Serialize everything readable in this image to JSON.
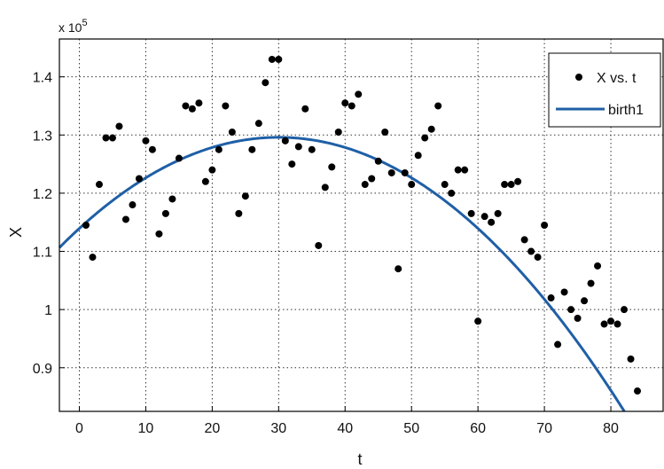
{
  "chart_data": {
    "type": "scatter",
    "xlabel": "t",
    "ylabel": "X",
    "xlim": [
      -3,
      88
    ],
    "ylim": [
      0.825,
      1.465
    ],
    "y_multiplier_label": "x 10",
    "y_multiplier_exponent": "5",
    "x_ticks": [
      0,
      10,
      20,
      30,
      40,
      50,
      60,
      70,
      80
    ],
    "x_tick_labels": [
      "0",
      "10",
      "20",
      "30",
      "40",
      "50",
      "60",
      "70",
      "80"
    ],
    "y_ticks": [
      0.9,
      1.0,
      1.1,
      1.2,
      1.3,
      1.4
    ],
    "y_tick_labels": [
      "0.9",
      "1",
      "1.1",
      "1.2",
      "1.3",
      "1.4"
    ],
    "grid": true,
    "legend_position": "top-right",
    "colors": {
      "points": "#000000",
      "fit": "#1f5fa6",
      "grid": "#333333",
      "frame": "#000000"
    },
    "series": [
      {
        "name": "X vs. t",
        "kind": "points",
        "points": [
          [
            1,
            1.145
          ],
          [
            2,
            1.09
          ],
          [
            3,
            1.215
          ],
          [
            4,
            1.295
          ],
          [
            5,
            1.295
          ],
          [
            6,
            1.315
          ],
          [
            7,
            1.155
          ],
          [
            8,
            1.18
          ],
          [
            9,
            1.225
          ],
          [
            10,
            1.29
          ],
          [
            11,
            1.275
          ],
          [
            12,
            1.13
          ],
          [
            13,
            1.165
          ],
          [
            14,
            1.19
          ],
          [
            15,
            1.26
          ],
          [
            16,
            1.35
          ],
          [
            17,
            1.345
          ],
          [
            18,
            1.355
          ],
          [
            19,
            1.22
          ],
          [
            20,
            1.24
          ],
          [
            21,
            1.275
          ],
          [
            22,
            1.35
          ],
          [
            23,
            1.305
          ],
          [
            24,
            1.165
          ],
          [
            25,
            1.195
          ],
          [
            26,
            1.275
          ],
          [
            27,
            1.32
          ],
          [
            28,
            1.39
          ],
          [
            29,
            1.43
          ],
          [
            30,
            1.43
          ],
          [
            31,
            1.29
          ],
          [
            32,
            1.25
          ],
          [
            33,
            1.28
          ],
          [
            34,
            1.345
          ],
          [
            35,
            1.275
          ],
          [
            36,
            1.11
          ],
          [
            37,
            1.21
          ],
          [
            38,
            1.245
          ],
          [
            39,
            1.305
          ],
          [
            40,
            1.355
          ],
          [
            41,
            1.35
          ],
          [
            42,
            1.37
          ],
          [
            43,
            1.215
          ],
          [
            44,
            1.225
          ],
          [
            45,
            1.255
          ],
          [
            46,
            1.305
          ],
          [
            47,
            1.235
          ],
          [
            48,
            1.07
          ],
          [
            49,
            1.235
          ],
          [
            50,
            1.215
          ],
          [
            51,
            1.265
          ],
          [
            52,
            1.295
          ],
          [
            53,
            1.31
          ],
          [
            54,
            1.35
          ],
          [
            55,
            1.215
          ],
          [
            56,
            1.2
          ],
          [
            57,
            1.24
          ],
          [
            58,
            1.24
          ],
          [
            59,
            1.165
          ],
          [
            60,
            0.98
          ],
          [
            61,
            1.16
          ],
          [
            62,
            1.15
          ],
          [
            63,
            1.165
          ],
          [
            64,
            1.215
          ],
          [
            65,
            1.215
          ],
          [
            66,
            1.22
          ],
          [
            67,
            1.12
          ],
          [
            68,
            1.1
          ],
          [
            69,
            1.09
          ],
          [
            70,
            1.145
          ],
          [
            71,
            1.02
          ],
          [
            72,
            0.94
          ],
          [
            73,
            1.03
          ],
          [
            74,
            1.0
          ],
          [
            75,
            0.985
          ],
          [
            76,
            1.015
          ],
          [
            77,
            1.045
          ],
          [
            78,
            1.075
          ],
          [
            79,
            0.975
          ],
          [
            80,
            0.98
          ],
          [
            81,
            0.975
          ],
          [
            82,
            1.0
          ],
          [
            83,
            0.915
          ],
          [
            84,
            0.86
          ]
        ]
      },
      {
        "name": "birth1",
        "kind": "line",
        "equation": "1.296 - 0.000174 * (t - 30)^2",
        "coefficients": {
          "vertex_t": 30,
          "vertex_x": 1.296,
          "a": -0.000174
        }
      }
    ]
  }
}
